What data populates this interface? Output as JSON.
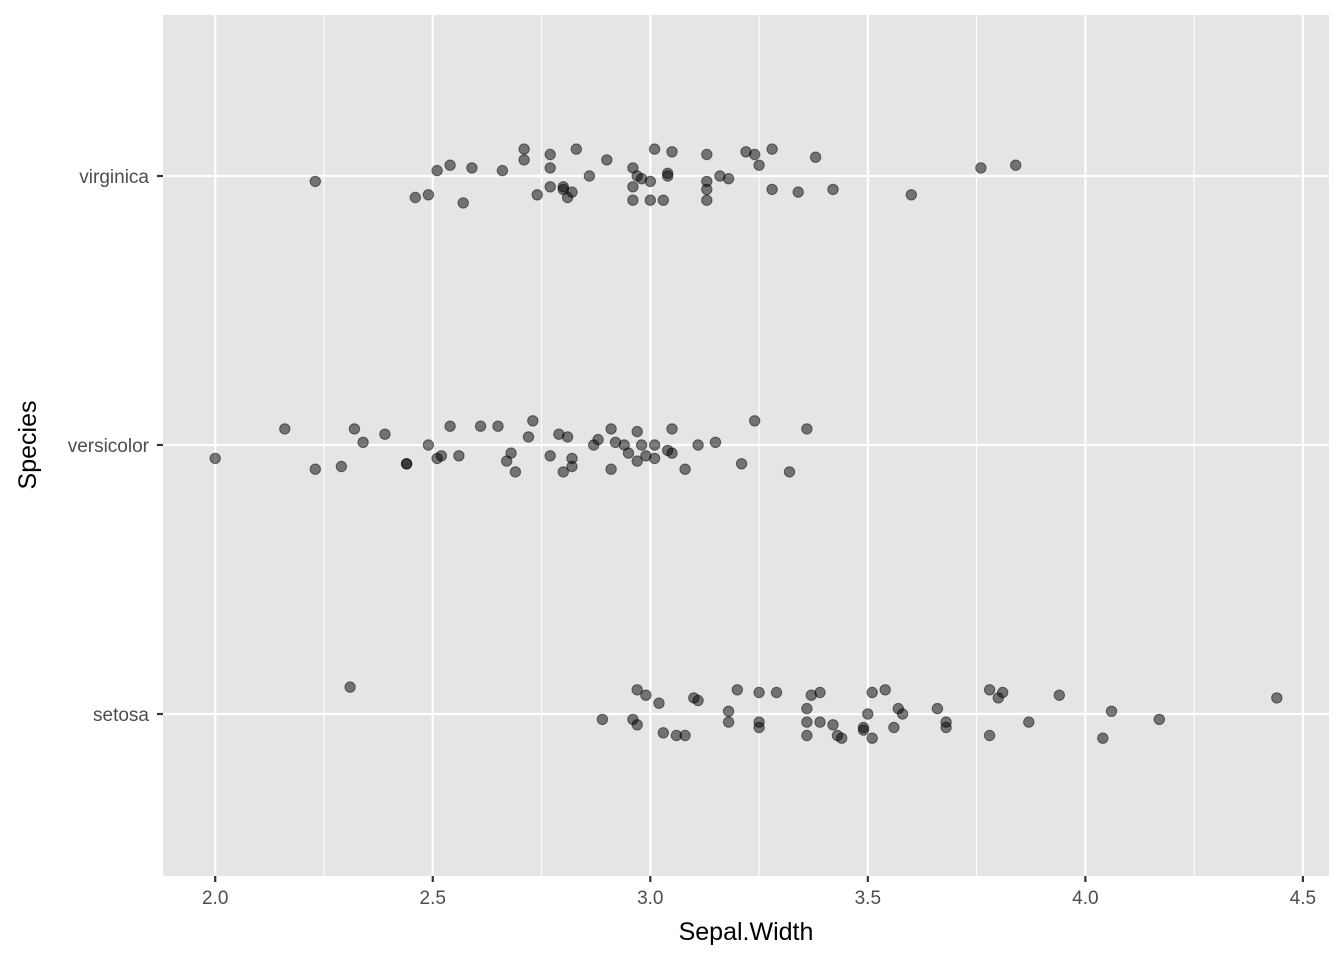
{
  "chart_data": {
    "type": "scatter",
    "subtype": "jitter",
    "title": "",
    "xlabel": "Sepal.Width",
    "ylabel": "Species",
    "xlim": [
      1.88,
      4.56
    ],
    "x_ticks": [
      2.0,
      2.5,
      3.0,
      3.5,
      4.0,
      4.5
    ],
    "x_tick_labels": [
      "2.0",
      "2.5",
      "3.0",
      "3.5",
      "4.0",
      "4.5"
    ],
    "categories": [
      "setosa",
      "versicolor",
      "virginica"
    ],
    "grid": true,
    "legend": "none",
    "point_color": "#000000",
    "point_alpha": 0.5,
    "panel_background": "#e5e5e5",
    "series": [
      {
        "name": "virginica",
        "points": [
          [
            2.23,
            -0.02
          ],
          [
            2.46,
            -0.08
          ],
          [
            2.49,
            -0.07
          ],
          [
            2.51,
            0.02
          ],
          [
            2.54,
            0.04
          ],
          [
            2.57,
            -0.1
          ],
          [
            2.59,
            0.03
          ],
          [
            2.66,
            0.02
          ],
          [
            2.71,
            0.1
          ],
          [
            2.71,
            0.06
          ],
          [
            2.74,
            -0.07
          ],
          [
            2.77,
            0.08
          ],
          [
            2.77,
            0.03
          ],
          [
            2.77,
            -0.04
          ],
          [
            2.8,
            -0.05
          ],
          [
            2.8,
            -0.04
          ],
          [
            2.81,
            -0.08
          ],
          [
            2.82,
            -0.06
          ],
          [
            2.83,
            0.1
          ],
          [
            2.86,
            0.0
          ],
          [
            2.9,
            0.06
          ],
          [
            2.96,
            0.03
          ],
          [
            2.96,
            -0.09
          ],
          [
            2.96,
            -0.04
          ],
          [
            2.97,
            0.0
          ],
          [
            2.98,
            -0.01
          ],
          [
            3.0,
            -0.02
          ],
          [
            3.0,
            -0.09
          ],
          [
            3.01,
            0.1
          ],
          [
            3.03,
            -0.09
          ],
          [
            3.04,
            0.01
          ],
          [
            3.04,
            0.0
          ],
          [
            3.05,
            0.09
          ],
          [
            3.13,
            0.08
          ],
          [
            3.13,
            -0.05
          ],
          [
            3.13,
            -0.09
          ],
          [
            3.13,
            -0.02
          ],
          [
            3.16,
            0.0
          ],
          [
            3.18,
            -0.01
          ],
          [
            3.22,
            0.09
          ],
          [
            3.24,
            0.08
          ],
          [
            3.25,
            0.04
          ],
          [
            3.28,
            0.1
          ],
          [
            3.28,
            -0.05
          ],
          [
            3.34,
            -0.06
          ],
          [
            3.38,
            0.07
          ],
          [
            3.42,
            -0.05
          ],
          [
            3.6,
            -0.07
          ],
          [
            3.76,
            0.03
          ],
          [
            3.84,
            0.04
          ]
        ]
      },
      {
        "name": "versicolor",
        "points": [
          [
            2.0,
            -0.05
          ],
          [
            2.16,
            0.06
          ],
          [
            2.23,
            -0.09
          ],
          [
            2.29,
            -0.08
          ],
          [
            2.32,
            0.06
          ],
          [
            2.34,
            0.01
          ],
          [
            2.39,
            0.04
          ],
          [
            2.44,
            -0.07
          ],
          [
            2.44,
            -0.07
          ],
          [
            2.49,
            0.0
          ],
          [
            2.51,
            -0.05
          ],
          [
            2.52,
            -0.04
          ],
          [
            2.54,
            0.07
          ],
          [
            2.56,
            -0.04
          ],
          [
            2.61,
            0.07
          ],
          [
            2.65,
            0.07
          ],
          [
            2.67,
            -0.06
          ],
          [
            2.68,
            -0.03
          ],
          [
            2.69,
            -0.1
          ],
          [
            2.72,
            0.03
          ],
          [
            2.73,
            0.09
          ],
          [
            2.77,
            -0.04
          ],
          [
            2.79,
            0.04
          ],
          [
            2.8,
            -0.1
          ],
          [
            2.81,
            0.03
          ],
          [
            2.82,
            -0.05
          ],
          [
            2.82,
            -0.08
          ],
          [
            2.87,
            0.0
          ],
          [
            2.88,
            0.02
          ],
          [
            2.91,
            -0.09
          ],
          [
            2.91,
            0.06
          ],
          [
            2.92,
            0.01
          ],
          [
            2.94,
            0.0
          ],
          [
            2.95,
            -0.03
          ],
          [
            2.97,
            0.05
          ],
          [
            2.97,
            -0.06
          ],
          [
            2.98,
            0.0
          ],
          [
            2.99,
            -0.04
          ],
          [
            3.01,
            0.0
          ],
          [
            3.01,
            -0.05
          ],
          [
            3.04,
            -0.02
          ],
          [
            3.05,
            0.06
          ],
          [
            3.05,
            -0.03
          ],
          [
            3.08,
            -0.09
          ],
          [
            3.11,
            0.0
          ],
          [
            3.15,
            0.01
          ],
          [
            3.21,
            -0.07
          ],
          [
            3.24,
            0.09
          ],
          [
            3.32,
            -0.1
          ],
          [
            3.36,
            0.06
          ]
        ]
      },
      {
        "name": "setosa",
        "points": [
          [
            2.31,
            0.1
          ],
          [
            2.89,
            -0.02
          ],
          [
            2.96,
            -0.02
          ],
          [
            2.97,
            0.09
          ],
          [
            2.97,
            -0.04
          ],
          [
            2.99,
            0.07
          ],
          [
            3.02,
            0.04
          ],
          [
            3.03,
            -0.07
          ],
          [
            3.06,
            -0.08
          ],
          [
            3.08,
            -0.08
          ],
          [
            3.1,
            0.06
          ],
          [
            3.11,
            0.05
          ],
          [
            3.18,
            -0.03
          ],
          [
            3.18,
            0.01
          ],
          [
            3.2,
            0.09
          ],
          [
            3.25,
            0.08
          ],
          [
            3.25,
            -0.03
          ],
          [
            3.25,
            -0.05
          ],
          [
            3.29,
            0.08
          ],
          [
            3.36,
            -0.03
          ],
          [
            3.36,
            0.02
          ],
          [
            3.36,
            -0.08
          ],
          [
            3.37,
            0.07
          ],
          [
            3.39,
            0.08
          ],
          [
            3.39,
            -0.03
          ],
          [
            3.42,
            -0.04
          ],
          [
            3.43,
            -0.08
          ],
          [
            3.44,
            -0.09
          ],
          [
            3.49,
            -0.06
          ],
          [
            3.49,
            -0.05
          ],
          [
            3.5,
            0.0
          ],
          [
            3.51,
            0.08
          ],
          [
            3.51,
            -0.09
          ],
          [
            3.54,
            0.09
          ],
          [
            3.56,
            -0.05
          ],
          [
            3.57,
            0.02
          ],
          [
            3.58,
            0.0
          ],
          [
            3.66,
            0.02
          ],
          [
            3.68,
            -0.03
          ],
          [
            3.68,
            -0.05
          ],
          [
            3.78,
            -0.08
          ],
          [
            3.78,
            0.09
          ],
          [
            3.8,
            0.06
          ],
          [
            3.81,
            0.08
          ],
          [
            3.87,
            -0.03
          ],
          [
            3.94,
            0.07
          ],
          [
            4.04,
            -0.09
          ],
          [
            4.06,
            0.01
          ],
          [
            4.17,
            -0.02
          ],
          [
            4.44,
            0.06
          ]
        ]
      }
    ]
  }
}
